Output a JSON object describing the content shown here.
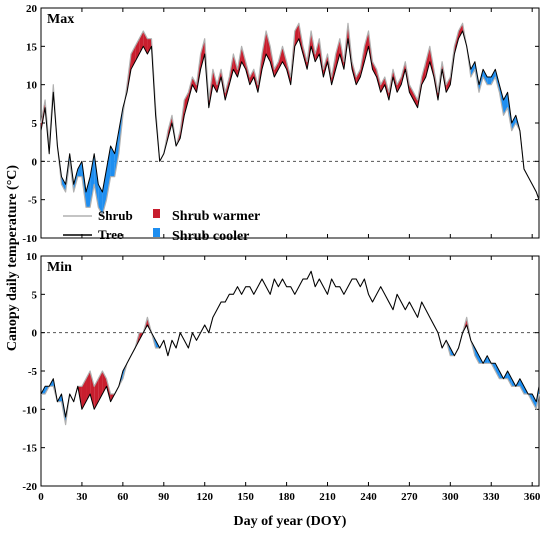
{
  "chart_data": {
    "type": "line",
    "ylabel": "Canopy daily temperature (°C)",
    "xlabel": "Day of year (DOY)",
    "x_ticks": [
      0,
      30,
      60,
      90,
      120,
      150,
      180,
      210,
      240,
      270,
      300,
      330,
      360
    ],
    "xlim": [
      0,
      365
    ],
    "legend": {
      "placement": "lower-left of top panel",
      "entries": [
        {
          "label": "Shrub",
          "kind": "line",
          "color": "#b0b0b0"
        },
        {
          "label": "Tree",
          "kind": "line",
          "color": "#000000"
        },
        {
          "label": "Shrub warmer",
          "kind": "patch",
          "color": "#c81e2e"
        },
        {
          "label": "Shrub cooler",
          "kind": "patch",
          "color": "#1e8ef0"
        }
      ]
    },
    "colors": {
      "shrub": "#b0b0b0",
      "tree": "#000000",
      "warmer": "#c81e2e",
      "cooler": "#1e8ef0"
    },
    "panels": [
      {
        "label": "Max",
        "ylim": [
          -10,
          20
        ],
        "y_ticks": [
          -10,
          -5,
          0,
          5,
          10,
          15,
          20
        ],
        "reference_line": 0,
        "series": [
          {
            "name": "Tree",
            "x": [
              0,
              3,
              6,
              9,
              12,
              15,
              18,
              21,
              24,
              27,
              30,
              33,
              36,
              39,
              42,
              45,
              48,
              51,
              54,
              57,
              60,
              63,
              66,
              69,
              72,
              75,
              78,
              81,
              84,
              87,
              90,
              93,
              96,
              99,
              102,
              105,
              108,
              111,
              114,
              117,
              120,
              123,
              126,
              129,
              132,
              135,
              138,
              141,
              144,
              147,
              150,
              153,
              156,
              159,
              162,
              165,
              168,
              171,
              174,
              177,
              180,
              183,
              186,
              189,
              192,
              195,
              198,
              201,
              204,
              207,
              210,
              213,
              216,
              219,
              222,
              225,
              228,
              231,
              234,
              237,
              240,
              243,
              246,
              249,
              252,
              255,
              258,
              261,
              264,
              267,
              270,
              273,
              276,
              279,
              282,
              285,
              288,
              291,
              294,
              297,
              300,
              303,
              306,
              309,
              312,
              315,
              318,
              321,
              324,
              327,
              330,
              333,
              336,
              339,
              342,
              345,
              348,
              351,
              354,
              357,
              360,
              363,
              365
            ],
            "y": [
              4,
              7,
              1,
              9,
              2,
              -2,
              -3,
              1,
              -3,
              -1,
              0,
              -4,
              -2,
              1,
              -3,
              -4,
              -1,
              2,
              1,
              4,
              7,
              9,
              12,
              13,
              14,
              15,
              14,
              15,
              6,
              0,
              1,
              3,
              5,
              2,
              3,
              6,
              8,
              10,
              9,
              12,
              14,
              7,
              10,
              9,
              11,
              8,
              10,
              12,
              11,
              13,
              12,
              10,
              11,
              9,
              12,
              14,
              13,
              11,
              12,
              13,
              12,
              10,
              15,
              16,
              14,
              12,
              15,
              13,
              14,
              11,
              13,
              10,
              12,
              14,
              12,
              16,
              12,
              10,
              11,
              13,
              15,
              12,
              11,
              9,
              10,
              8,
              11,
              9,
              10,
              12,
              9,
              8,
              7,
              10,
              11,
              13,
              11,
              8,
              12,
              9,
              10,
              14,
              16,
              17,
              15,
              12,
              13,
              10,
              12,
              11,
              11,
              12,
              10,
              8,
              9,
              5,
              6,
              4,
              -1,
              -2,
              -3,
              -4,
              -5
            ]
          },
          {
            "name": "Shrub",
            "x": [
              0,
              3,
              6,
              9,
              12,
              15,
              18,
              21,
              24,
              27,
              30,
              33,
              36,
              39,
              42,
              45,
              48,
              51,
              54,
              57,
              60,
              63,
              66,
              69,
              72,
              75,
              78,
              81,
              84,
              87,
              90,
              93,
              96,
              99,
              102,
              105,
              108,
              111,
              114,
              117,
              120,
              123,
              126,
              129,
              132,
              135,
              138,
              141,
              144,
              147,
              150,
              153,
              156,
              159,
              162,
              165,
              168,
              171,
              174,
              177,
              180,
              183,
              186,
              189,
              192,
              195,
              198,
              201,
              204,
              207,
              210,
              213,
              216,
              219,
              222,
              225,
              228,
              231,
              234,
              237,
              240,
              243,
              246,
              249,
              252,
              255,
              258,
              261,
              264,
              267,
              270,
              273,
              276,
              279,
              282,
              285,
              288,
              291,
              294,
              297,
              300,
              303,
              306,
              309,
              312,
              315,
              318,
              321,
              324,
              327,
              330,
              333,
              336,
              339,
              342,
              345,
              348,
              351,
              354,
              357,
              360,
              363,
              365
            ],
            "y": [
              5,
              8,
              2,
              10,
              2,
              -3,
              -4,
              0,
              -4,
              -2,
              -2,
              -6,
              -6,
              -3,
              -6,
              -7,
              -5,
              -2,
              -2,
              1,
              6,
              10,
              14,
              15,
              16,
              17,
              16,
              16,
              7,
              0,
              1,
              4,
              6,
              2,
              4,
              8,
              9,
              11,
              10,
              14,
              16,
              8,
              12,
              10,
              12,
              9,
              11,
              14,
              12,
              15,
              13,
              11,
              12,
              10,
              14,
              17,
              15,
              12,
              13,
              15,
              13,
              11,
              17,
              18,
              15,
              13,
              17,
              14,
              16,
              12,
              14,
              11,
              14,
              16,
              13,
              18,
              13,
              11,
              12,
              15,
              17,
              13,
              12,
              10,
              11,
              9,
              12,
              10,
              11,
              13,
              10,
              9,
              8,
              11,
              13,
              15,
              12,
              9,
              13,
              10,
              11,
              15,
              17,
              18,
              15,
              11,
              12,
              9,
              11,
              10,
              10,
              11,
              9,
              6,
              7,
              4,
              5,
              4,
              -1,
              -2,
              -3,
              -4,
              -5
            ]
          }
        ]
      },
      {
        "label": "Min",
        "ylim": [
          -20,
          10
        ],
        "y_ticks": [
          -20,
          -15,
          -10,
          -5,
          0,
          5,
          10
        ],
        "reference_line": 0,
        "series": [
          {
            "name": "Tree",
            "x": [
              0,
              3,
              6,
              9,
              12,
              15,
              18,
              21,
              24,
              27,
              30,
              33,
              36,
              39,
              42,
              45,
              48,
              51,
              54,
              57,
              60,
              63,
              66,
              69,
              72,
              75,
              78,
              81,
              84,
              87,
              90,
              93,
              96,
              99,
              102,
              105,
              108,
              111,
              114,
              117,
              120,
              123,
              126,
              129,
              132,
              135,
              138,
              141,
              144,
              147,
              150,
              153,
              156,
              159,
              162,
              165,
              168,
              171,
              174,
              177,
              180,
              183,
              186,
              189,
              192,
              195,
              198,
              201,
              204,
              207,
              210,
              213,
              216,
              219,
              222,
              225,
              228,
              231,
              234,
              237,
              240,
              243,
              246,
              249,
              252,
              255,
              258,
              261,
              264,
              267,
              270,
              273,
              276,
              279,
              282,
              285,
              288,
              291,
              294,
              297,
              300,
              303,
              306,
              309,
              312,
              315,
              318,
              321,
              324,
              327,
              330,
              333,
              336,
              339,
              342,
              345,
              348,
              351,
              354,
              357,
              360,
              363,
              365
            ],
            "y": [
              -8,
              -7,
              -7,
              -6,
              -9,
              -8,
              -11,
              -8,
              -9,
              -7,
              -10,
              -9,
              -8,
              -10,
              -9,
              -8,
              -7,
              -9,
              -8,
              -7,
              -5,
              -4,
              -3,
              -2,
              -1,
              0,
              1,
              0,
              -1,
              -2,
              -1,
              -3,
              -1,
              -2,
              0,
              -1,
              -2,
              0,
              -1,
              0,
              1,
              0,
              2,
              3,
              4,
              4,
              5,
              5,
              6,
              5,
              6,
              6,
              5,
              6,
              7,
              6,
              5,
              7,
              6,
              7,
              6,
              6,
              5,
              6,
              7,
              7,
              8,
              6,
              7,
              6,
              5,
              7,
              6,
              6,
              5,
              6,
              7,
              7,
              6,
              7,
              5,
              4,
              5,
              6,
              5,
              4,
              3,
              5,
              4,
              3,
              4,
              3,
              2,
              4,
              3,
              2,
              1,
              0,
              -2,
              -1,
              -2,
              -3,
              -2,
              0,
              1,
              -1,
              -2,
              -3,
              -4,
              -3,
              -4,
              -4,
              -5,
              -6,
              -5,
              -6,
              -7,
              -6,
              -7,
              -8,
              -8,
              -9,
              -7
            ]
          },
          {
            "name": "Shrub",
            "x": [
              0,
              3,
              6,
              9,
              12,
              15,
              18,
              21,
              24,
              27,
              30,
              33,
              36,
              39,
              42,
              45,
              48,
              51,
              54,
              57,
              60,
              63,
              66,
              69,
              72,
              75,
              78,
              81,
              84,
              87,
              90,
              93,
              96,
              99,
              102,
              105,
              108,
              111,
              114,
              117,
              120,
              123,
              126,
              129,
              132,
              135,
              138,
              141,
              144,
              147,
              150,
              153,
              156,
              159,
              162,
              165,
              168,
              171,
              174,
              177,
              180,
              183,
              186,
              189,
              192,
              195,
              198,
              201,
              204,
              207,
              210,
              213,
              216,
              219,
              222,
              225,
              228,
              231,
              234,
              237,
              240,
              243,
              246,
              249,
              252,
              255,
              258,
              261,
              264,
              267,
              270,
              273,
              276,
              279,
              282,
              285,
              288,
              291,
              294,
              297,
              300,
              303,
              306,
              309,
              312,
              315,
              318,
              321,
              324,
              327,
              330,
              333,
              336,
              339,
              342,
              345,
              348,
              351,
              354,
              357,
              360,
              363,
              365
            ],
            "y": [
              -8,
              -8,
              -7,
              -7,
              -9,
              -9,
              -12,
              -8,
              -9,
              -7,
              -7,
              -6,
              -5,
              -7,
              -6,
              -5,
              -6,
              -8,
              -8,
              -7,
              -6,
              -4,
              -3,
              -2,
              0,
              0,
              2,
              0,
              -2,
              -2,
              -1,
              -3,
              -1,
              -2,
              0,
              -1,
              -2,
              0,
              -1,
              0,
              1,
              0,
              2,
              3,
              4,
              4,
              5,
              5,
              6,
              5,
              6,
              6,
              5,
              6,
              7,
              6,
              5,
              7,
              6,
              7,
              6,
              6,
              5,
              6,
              7,
              7,
              8,
              6,
              7,
              6,
              5,
              7,
              6,
              6,
              5,
              6,
              7,
              7,
              6,
              7,
              5,
              4,
              5,
              6,
              5,
              4,
              3,
              5,
              4,
              3,
              4,
              3,
              2,
              4,
              3,
              2,
              1,
              0,
              -2,
              -1,
              -3,
              -3,
              -2,
              0,
              2,
              -1,
              -3,
              -4,
              -4,
              -4,
              -4,
              -5,
              -6,
              -6,
              -6,
              -7,
              -7,
              -7,
              -8,
              -8,
              -9,
              -10,
              -8
            ]
          }
        ]
      }
    ]
  }
}
